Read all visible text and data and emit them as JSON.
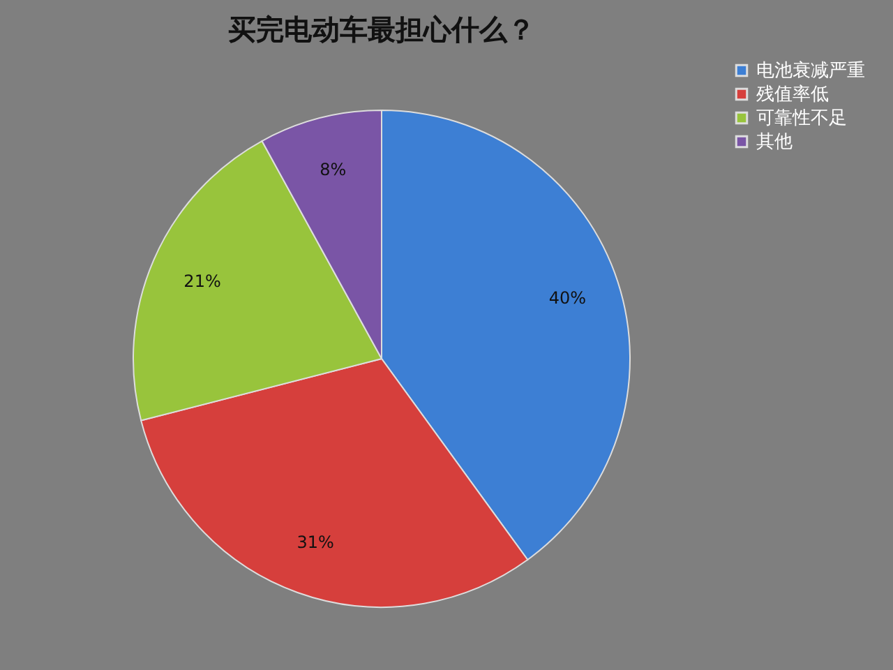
{
  "chart_data": {
    "type": "pie",
    "title": "买完电动车最担心什么？",
    "categories": [
      "电池衰减严重",
      "残值率低",
      "可靠性不足",
      "其他"
    ],
    "values": [
      40,
      31,
      21,
      8
    ],
    "value_labels": [
      "40%",
      "31%",
      "21%",
      "8%"
    ],
    "colors": [
      "#3d7fd4",
      "#d63f3c",
      "#98c43c",
      "#7a55a6"
    ],
    "legend": "right"
  }
}
